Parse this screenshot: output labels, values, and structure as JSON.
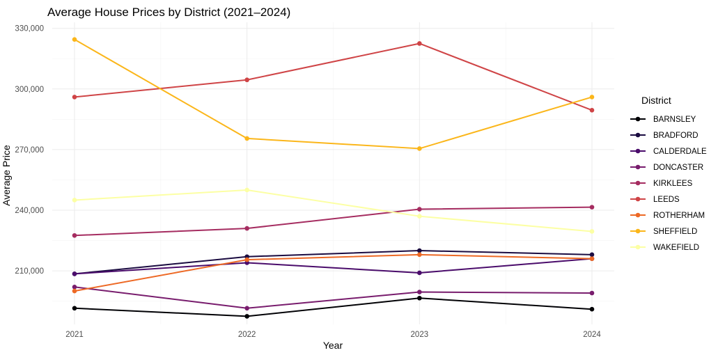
{
  "chart_data": {
    "type": "line",
    "title": "Average House Prices by District (2021–2024)",
    "xlabel": "Year",
    "ylabel": "Average Price",
    "x": [
      "2021",
      "2022",
      "2023",
      "2024"
    ],
    "yticks": [
      210000,
      240000,
      270000,
      300000,
      330000
    ],
    "ytick_labels": [
      "210,000",
      "240,000",
      "270,000",
      "300,000",
      "330,000"
    ],
    "ylim": [
      183500,
      333000
    ],
    "grid": true,
    "legend": {
      "title": "District",
      "position": "right"
    },
    "series": [
      {
        "name": "BARNSLEY",
        "color": "#000004",
        "values": [
          191500,
          187500,
          196500,
          191000
        ]
      },
      {
        "name": "BRADFORD",
        "color": "#1b0c41",
        "values": [
          208500,
          217000,
          220000,
          218000
        ]
      },
      {
        "name": "CALDERDALE",
        "color": "#4a0c6b",
        "values": [
          208500,
          214000,
          209000,
          216000
        ]
      },
      {
        "name": "DONCASTER",
        "color": "#781c6d",
        "values": [
          202000,
          191500,
          199500,
          199000
        ]
      },
      {
        "name": "KIRKLEES",
        "color": "#a52c60",
        "values": [
          227500,
          231000,
          240500,
          241500
        ]
      },
      {
        "name": "LEEDS",
        "color": "#cf4446",
        "values": [
          296000,
          304500,
          322500,
          289500
        ]
      },
      {
        "name": "ROTHERHAM",
        "color": "#ed6925",
        "values": [
          200000,
          215500,
          218000,
          216000
        ]
      },
      {
        "name": "SHEFFIELD",
        "color": "#fbb61a",
        "values": [
          324500,
          275500,
          270500,
          296000
        ]
      },
      {
        "name": "WAKEFIELD",
        "color": "#fcffa4",
        "values": [
          245000,
          250000,
          237000,
          229500
        ]
      }
    ]
  }
}
